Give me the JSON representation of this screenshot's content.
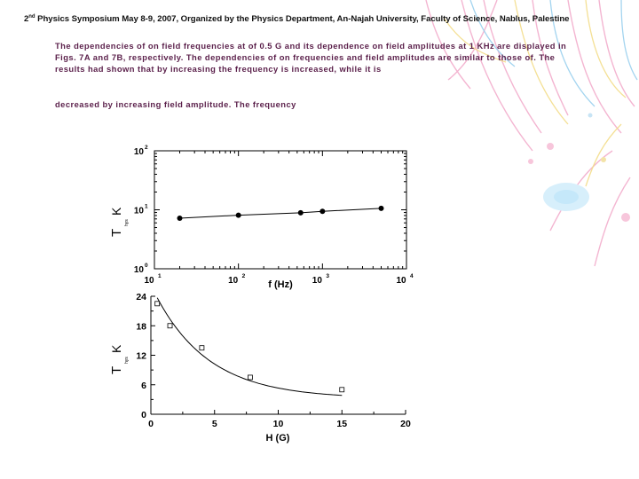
{
  "header": {
    "ordinal_num": "2",
    "ordinal_suffix": "nd",
    "text": " Physics Symposium May 8-9, 2007, Organized by the Physics Department, An-Najah University, Faculty of Science, Nablus, Palestine"
  },
  "body": {
    "paragraph1": "The dependencies of  on field frequencies at of 0.5 G and its dependence on field amplitudes at 1 KHz are displayed in Figs. 7A and 7B, respectively.  The dependencies of on frequencies and field amplitudes are similar to those of.  The results had shown that by increasing the frequency is increased, while it is",
    "paragraph2": "decreased by increasing field amplitude.  The frequency"
  },
  "colors": {
    "text_accent": "#5a1f4a",
    "streamer_pink": "#f2a9c9",
    "streamer_blue": "#9ad0ee",
    "streamer_yellow": "#f3dd8a"
  },
  "chart_data": [
    {
      "type": "scatter",
      "scale": "log-log",
      "x_major_ticks": [
        10,
        100,
        1000,
        10000
      ],
      "x_tick_labels": [
        {
          "base": "10",
          "exp": "1"
        },
        {
          "base": "10",
          "exp": "2"
        },
        {
          "base": "10",
          "exp": "3"
        },
        {
          "base": "10",
          "exp": "4"
        }
      ],
      "y_major_ticks": [
        1,
        10,
        100
      ],
      "y_tick_labels": [
        {
          "base": "10",
          "exp": "0"
        },
        {
          "base": "10",
          "exp": "1"
        },
        {
          "base": "10",
          "exp": "2"
        }
      ],
      "xlim": [
        10,
        10000
      ],
      "ylim": [
        1,
        100
      ],
      "xlabel": "f (Hz)",
      "ylabel_main": "T",
      "ylabel_unit": "K",
      "ylabel_sub": "hys",
      "marker": "filled-circle",
      "fit_line": true,
      "x": [
        20,
        100,
        550,
        1000,
        5000
      ],
      "y": [
        7.2,
        8.1,
        8.9,
        9.4,
        10.6
      ]
    },
    {
      "type": "scatter",
      "xlim": [
        0,
        20
      ],
      "ylim": [
        0,
        24
      ],
      "x_ticks": [
        0,
        5,
        10,
        15,
        20
      ],
      "y_ticks": [
        0,
        6,
        12,
        18,
        24
      ],
      "xlabel": "H (G)",
      "ylabel_main": "T",
      "ylabel_unit": "K",
      "ylabel_sub": "hys",
      "marker": "open-square",
      "fit_line": true,
      "x": [
        0.5,
        1.5,
        4,
        7.8,
        15
      ],
      "y": [
        22.5,
        18,
        13.5,
        7.5,
        5
      ]
    }
  ]
}
